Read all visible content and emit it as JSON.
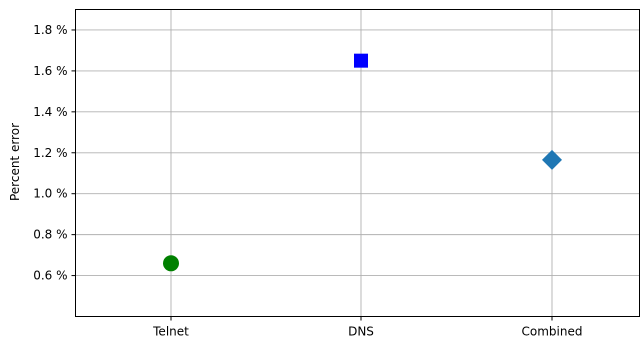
{
  "chart_data": {
    "type": "scatter",
    "ylabel": "Percent error",
    "y_unit_suffix": " %",
    "categories": [
      "Telnet",
      "DNS",
      "Combined"
    ],
    "points": [
      {
        "category": "Telnet",
        "value": 0.66,
        "marker": "circle",
        "color": "#008000"
      },
      {
        "category": "DNS",
        "value": 1.65,
        "marker": "square",
        "color": "#0000ff"
      },
      {
        "category": "Combined",
        "value": 1.165,
        "marker": "diamond",
        "color": "#1f77b4"
      }
    ],
    "yticks": [
      0.6,
      0.8,
      1.0,
      1.2,
      1.4,
      1.6,
      1.8
    ],
    "ylim": [
      0.4,
      1.9
    ],
    "grid": true
  }
}
